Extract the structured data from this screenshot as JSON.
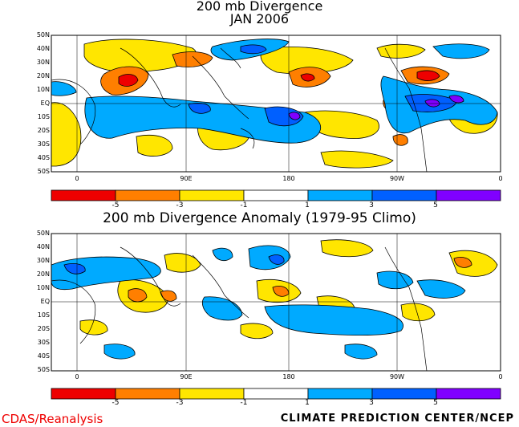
{
  "titles": {
    "panel1_line1": "200 mb Divergence",
    "panel1_line2": "JAN 2006",
    "panel2": "200 mb Divergence Anomaly (1979-95 Climo)"
  },
  "lat_labels": [
    "50N",
    "40N",
    "30N",
    "20N",
    "10N",
    "EQ",
    "10S",
    "20S",
    "30S",
    "40S",
    "50S"
  ],
  "lon_labels": [
    "0",
    "90E",
    "180",
    "90W",
    "0"
  ],
  "colorbar": {
    "colors": [
      "#ee0000",
      "#ff7f00",
      "#ffe600",
      "#ffffff",
      "#00aaff",
      "#0060ff",
      "#8000ff"
    ],
    "labels": [
      "-5",
      "-3",
      "-1",
      "1",
      "3",
      "5"
    ]
  },
  "footer": {
    "left": "CDAS/Reanalysis",
    "right": "CLIMATE PREDICTION CENTER/NCEP"
  },
  "legend_colors": {
    "red": "#ee0000",
    "orange": "#ff7f00",
    "yellow": "#ffe600",
    "white": "#ffffff",
    "lightblue": "#00aaff",
    "blue": "#0060ff",
    "purple": "#8000ff"
  }
}
